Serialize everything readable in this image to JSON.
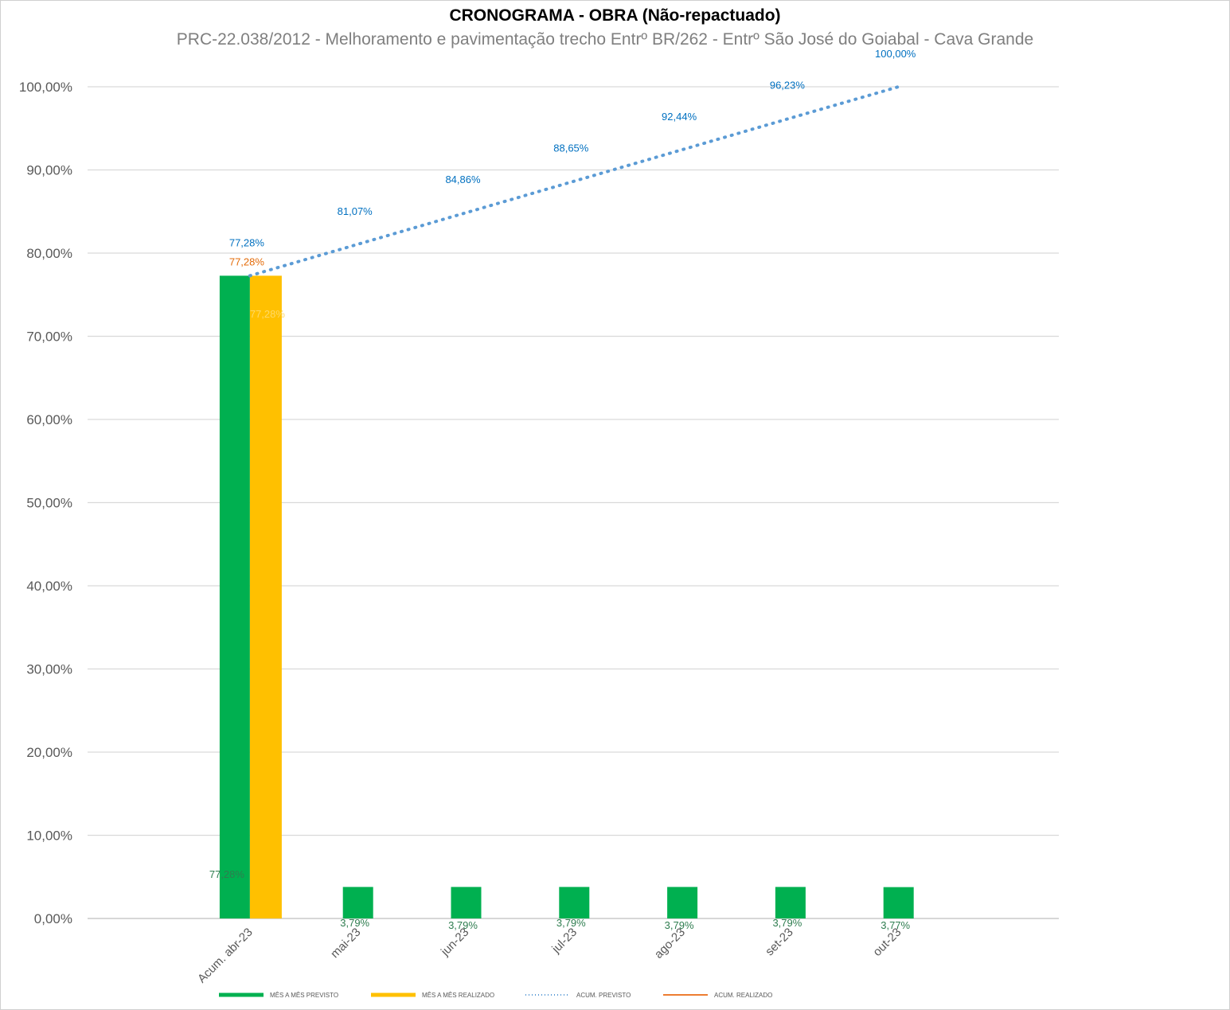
{
  "chart_data": {
    "type": "bar",
    "title": "CRONOGRAMA - OBRA (Não-repactuado)",
    "subtitle": "PRC-22.038/2012 - Melhoramento e pavimentação trecho Entrº BR/262 - Entrº São José do Goiabal - Cava Grande",
    "categories": [
      "Acum. abr-23",
      "mai-23",
      "jun-23",
      "jul-23",
      "ago-23",
      "set-23",
      "out-23"
    ],
    "ylim": [
      0,
      100
    ],
    "yticks": [
      0,
      10,
      20,
      30,
      40,
      50,
      60,
      70,
      80,
      90,
      100
    ],
    "ytick_labels": [
      "0,00%",
      "10,00%",
      "20,00%",
      "30,00%",
      "40,00%",
      "50,00%",
      "60,00%",
      "70,00%",
      "80,00%",
      "90,00%",
      "100,00%"
    ],
    "grid": true,
    "legend_position": "bottom",
    "series": [
      {
        "name": "MÊS A MÊS PREVISTO",
        "kind": "bar",
        "color": "#00b050",
        "values": [
          77.28,
          3.79,
          3.79,
          3.79,
          3.79,
          3.79,
          3.77
        ],
        "labels": [
          "77,28%",
          "3,79%",
          "3,79%",
          "3,79%",
          "3,79%",
          "3,79%",
          "3,77%"
        ],
        "label_color": "#2e7d4f"
      },
      {
        "name": "MÊS A MÊS REALIZADO",
        "kind": "bar",
        "color": "#ffc000",
        "values": [
          77.28,
          null,
          null,
          null,
          null,
          null,
          null
        ],
        "labels": [
          "77,28%",
          null,
          null,
          null,
          null,
          null,
          null
        ],
        "label_color": "#ffd966"
      },
      {
        "name": "ACUM. PREVISTO",
        "kind": "line-dotted",
        "color": "#5b9bd5",
        "values": [
          77.28,
          81.07,
          84.86,
          88.65,
          92.44,
          96.23,
          100.0
        ],
        "labels": [
          "77,28%",
          "81,07%",
          "84,86%",
          "88,65%",
          "92,44%",
          "96,23%",
          "100,00%"
        ],
        "label_color": "#0070c0"
      },
      {
        "name": "ACUM. REALIZADO",
        "kind": "line",
        "color": "#ed7d31",
        "values": [
          77.28,
          null,
          null,
          null,
          null,
          null,
          null
        ],
        "labels": [
          "77,28%",
          null,
          null,
          null,
          null,
          null,
          null
        ],
        "label_color": "#e46c0a"
      }
    ]
  }
}
